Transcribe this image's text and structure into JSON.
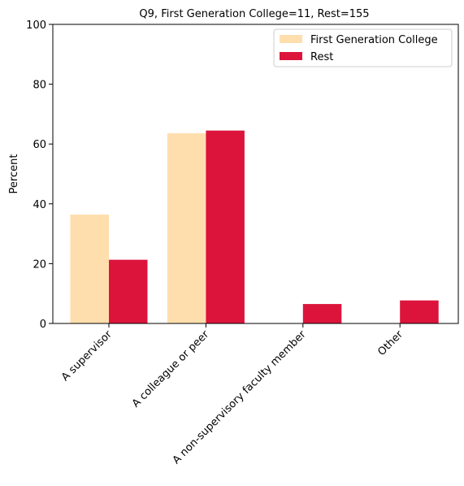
{
  "chart_data": {
    "type": "bar",
    "title": "Q9, First Generation College=11, Rest=155",
    "xlabel": "",
    "ylabel": "Percent",
    "ylim": [
      0,
      100
    ],
    "yticks": [
      0,
      20,
      40,
      60,
      80,
      100
    ],
    "categories": [
      "A supervisor",
      "A colleague or peer",
      "A non-supervisory faculty member",
      "Other"
    ],
    "series": [
      {
        "name": "First Generation College",
        "color": "#FFDEAD",
        "values": [
          36.4,
          63.6,
          0,
          0
        ]
      },
      {
        "name": "Rest",
        "color": "#DC143C",
        "values": [
          21.3,
          64.5,
          6.5,
          7.7
        ]
      }
    ],
    "grid": false,
    "legend_position": "top-right"
  }
}
